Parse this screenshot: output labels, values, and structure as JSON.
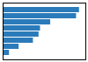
{
  "chart_data": {
    "type": "bar",
    "orientation": "horizontal",
    "categories": [
      null,
      null,
      null,
      null,
      null,
      null,
      null,
      null
    ],
    "values": [
      5.17,
      4.97,
      3.22,
      2.53,
      2.43,
      2.05,
      1.08,
      0.43
    ],
    "color": "#2b7bba",
    "xlim": [
      0,
      5.6
    ],
    "grid": false,
    "tick_labels": false
  }
}
